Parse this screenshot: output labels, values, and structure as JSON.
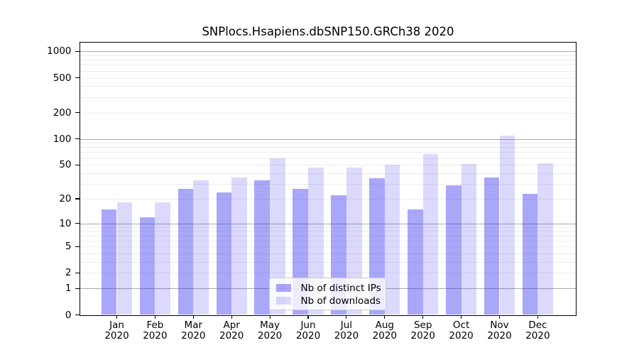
{
  "chart_data": {
    "type": "bar",
    "title": "SNPlocs.Hsapiens.dbSNP150.GRCh38 2020",
    "categories": [
      "Jan",
      "Feb",
      "Mar",
      "Apr",
      "May",
      "Jun",
      "Jul",
      "Aug",
      "Sep",
      "Oct",
      "Nov",
      "Dec"
    ],
    "category_year": "2020",
    "series": [
      {
        "name": "Nb of distinct IPs",
        "values": [
          15,
          12,
          26,
          24,
          33,
          26,
          22,
          35,
          15,
          29,
          36,
          23
        ],
        "color": "rgba(60,55,240,0.44)",
        "approx_hex": "#a9a7fa"
      },
      {
        "name": "Nb of downloads",
        "values": [
          18,
          18,
          33,
          36,
          60,
          47,
          47,
          50,
          67,
          51,
          108,
          52
        ],
        "color": "rgba(60,55,240,0.185)",
        "approx_hex": "#dcdafb"
      }
    ],
    "y_axis": {
      "scale": "log10(1+v)",
      "ticks": [
        0,
        1,
        2,
        5,
        10,
        20,
        50,
        100,
        200,
        500,
        1000
      ],
      "major_gridlines": [
        1,
        10,
        100,
        1000
      ],
      "ylim": [
        0,
        1270
      ]
    },
    "xlabel": "",
    "ylabel": "",
    "grid": "on",
    "legend_position": "bottom-center",
    "colors": {
      "major_grid": "#a9a9a9",
      "minor_grid": "#ececec",
      "frame": "#000000",
      "background": "#ffffff"
    }
  }
}
